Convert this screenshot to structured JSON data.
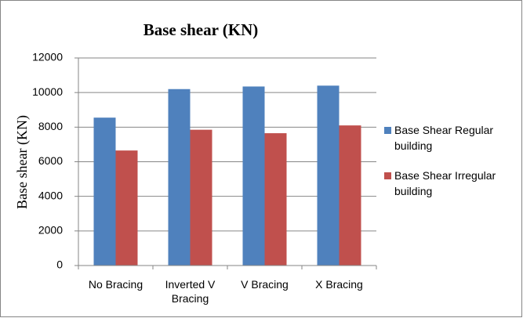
{
  "chart_data": {
    "type": "bar",
    "title": "Base shear (KN)",
    "y_label": "Base shear (KN)",
    "categories": [
      "No Bracing",
      "Inverted V Bracing",
      "V Bracing",
      "X Bracing"
    ],
    "series": [
      {
        "name": "Base Shear Regular building",
        "color": "#4f81bd",
        "values": [
          8550,
          10200,
          10350,
          10400
        ]
      },
      {
        "name": "Base Shear Irregular building",
        "color": "#c0504d",
        "values": [
          6650,
          7850,
          7650,
          8100
        ]
      }
    ],
    "ylim": [
      0,
      12000
    ],
    "yticks": [
      0,
      2000,
      4000,
      6000,
      8000,
      10000,
      12000
    ],
    "grid": true,
    "legend": "right"
  }
}
